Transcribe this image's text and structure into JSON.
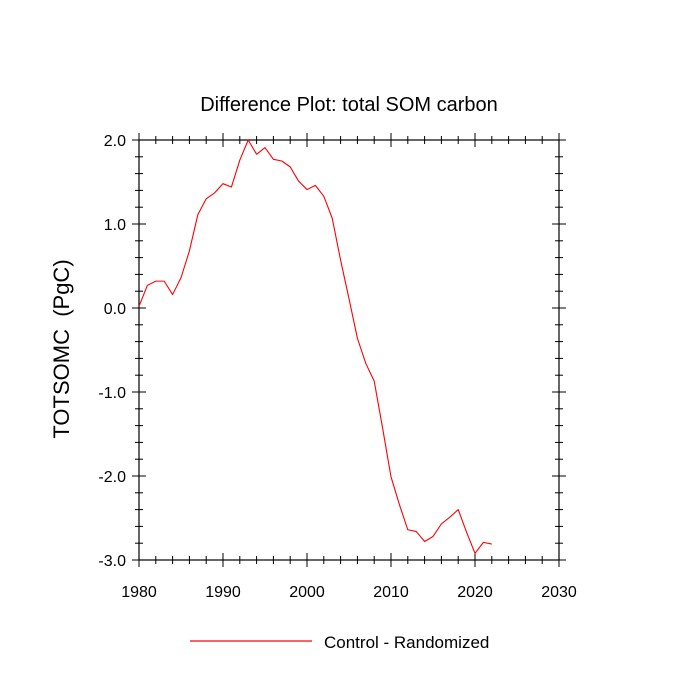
{
  "chart_data": {
    "type": "line",
    "title": "Difference Plot: total SOM carbon",
    "xlabel": "",
    "ylabel": "TOTSOMC  (PgC)",
    "xlim": [
      1980,
      2030
    ],
    "ylim": [
      -3.0,
      2.0
    ],
    "xticks": [
      1980,
      1990,
      2000,
      2010,
      2020,
      2030
    ],
    "xtick_labels": [
      "1980",
      "1990",
      "2000",
      "2010",
      "2020",
      "2030"
    ],
    "yticks": [
      -3.0,
      -2.0,
      -1.0,
      0.0,
      1.0,
      2.0
    ],
    "ytick_labels": [
      "-3.0",
      "-2.0",
      "-1.0",
      "0.0",
      "1.0",
      "2.0"
    ],
    "grid": false,
    "legend_position": "bottom-center",
    "series": [
      {
        "name": "Control - Randomized",
        "color": "#ff0000",
        "x": [
          1980,
          1981,
          1982,
          1983,
          1984,
          1985,
          1986,
          1987,
          1988,
          1989,
          1990,
          1991,
          1992,
          1993,
          1994,
          1995,
          1996,
          1997,
          1998,
          1999,
          2000,
          2001,
          2002,
          2003,
          2004,
          2005,
          2006,
          2007,
          2008,
          2009,
          2010,
          2011,
          2012,
          2013,
          2014,
          2015,
          2016,
          2017,
          2018,
          2019,
          2020,
          2021,
          2022
        ],
        "values": [
          0.02,
          0.27,
          0.32,
          0.32,
          0.16,
          0.36,
          0.68,
          1.11,
          1.3,
          1.37,
          1.48,
          1.44,
          1.76,
          2.0,
          1.83,
          1.91,
          1.77,
          1.75,
          1.68,
          1.51,
          1.41,
          1.46,
          1.33,
          1.07,
          0.57,
          0.11,
          -0.36,
          -0.66,
          -0.87,
          -1.43,
          -2.01,
          -2.34,
          -2.64,
          -2.66,
          -2.78,
          -2.72,
          -2.57,
          -2.49,
          -2.4,
          -2.67,
          -2.92,
          -2.79,
          -2.81
        ]
      }
    ]
  }
}
